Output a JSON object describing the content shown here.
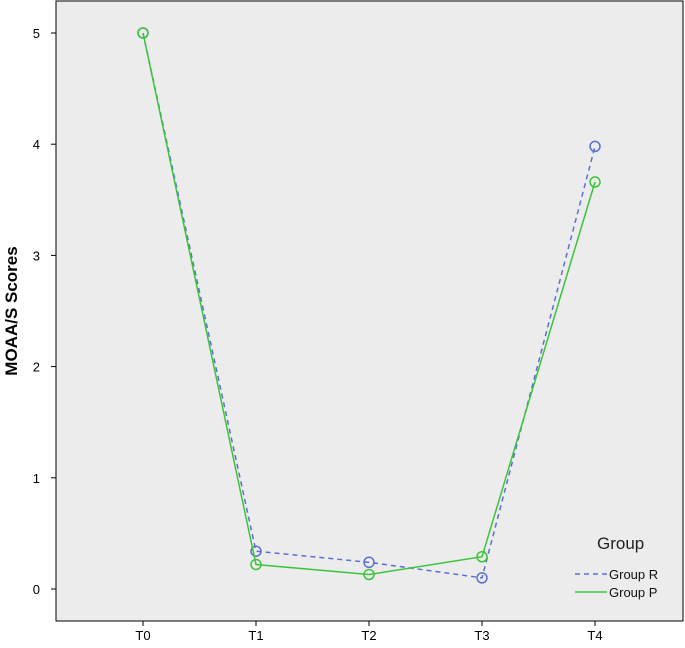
{
  "chart_data": {
    "type": "line",
    "title": "",
    "xlabel": "",
    "ylabel": "MOAA/S Scores",
    "categories": [
      "T0",
      "T1",
      "T2",
      "T3",
      "T4"
    ],
    "ylim": [
      -0.3,
      5.2
    ],
    "yticks": [
      0,
      1,
      2,
      3,
      4,
      5
    ],
    "grid": false,
    "background_color": "#ececec",
    "legend": {
      "title": "Group",
      "placement": "bottom-right"
    },
    "series": [
      {
        "name": "Group R",
        "values": [
          5.0,
          0.34,
          0.24,
          0.1,
          3.98
        ],
        "color": "#5a6fd6",
        "line_style": "dashed",
        "marker": "open-circle"
      },
      {
        "name": "Group P",
        "values": [
          5.0,
          0.22,
          0.13,
          0.29,
          3.66
        ],
        "color": "#3cc43c",
        "line_style": "solid",
        "marker": "open-circle"
      }
    ]
  }
}
